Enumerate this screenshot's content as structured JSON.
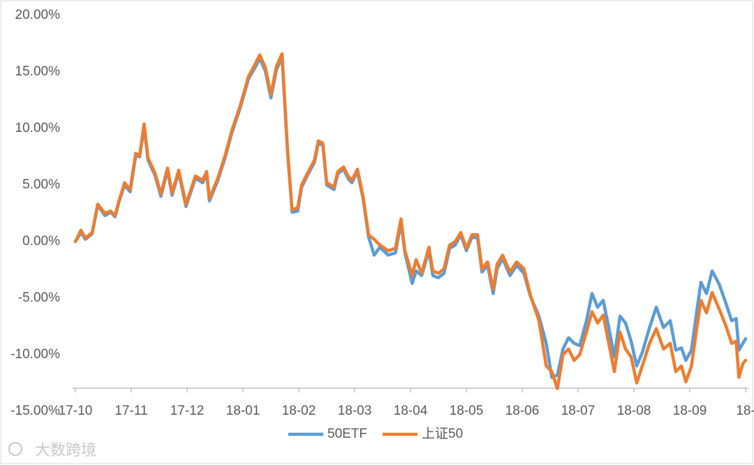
{
  "chart_data": {
    "type": "line",
    "watermark": "大数跨境",
    "xlim": [
      0,
      12
    ],
    "xticks": [
      {
        "value": 0,
        "label": "17-10"
      },
      {
        "value": 1,
        "label": "17-11"
      },
      {
        "value": 2,
        "label": "17-12"
      },
      {
        "value": 3,
        "label": "18-01"
      },
      {
        "value": 4,
        "label": "18-02"
      },
      {
        "value": 5,
        "label": "18-03"
      },
      {
        "value": 6,
        "label": "18-04"
      },
      {
        "value": 7,
        "label": "18-05"
      },
      {
        "value": 8,
        "label": "18-06"
      },
      {
        "value": 9,
        "label": "18-07"
      },
      {
        "value": 10,
        "label": "18-08"
      },
      {
        "value": 11,
        "label": "18-09"
      },
      {
        "value": 12,
        "label": "18-"
      }
    ],
    "ylim": [
      -15,
      20
    ],
    "yticks": [
      {
        "value": -15,
        "label": "-15.00%"
      },
      {
        "value": -10,
        "label": "-10.00%"
      },
      {
        "value": -5,
        "label": "-5.00%"
      },
      {
        "value": 0,
        "label": "0.00%"
      },
      {
        "value": 5,
        "label": "5.00%"
      },
      {
        "value": 10,
        "label": "10.00%"
      },
      {
        "value": 15,
        "label": "15.00%"
      },
      {
        "value": 20,
        "label": "20.00%"
      }
    ],
    "legend": "bottom",
    "x": [
      0,
      0.1,
      0.18,
      0.3,
      0.4,
      0.53,
      0.63,
      0.71,
      0.78,
      0.88,
      0.98,
      1.08,
      1.15,
      1.23,
      1.3,
      1.43,
      1.53,
      1.65,
      1.73,
      1.85,
      1.98,
      2.15,
      2.28,
      2.35,
      2.4,
      2.55,
      2.68,
      2.8,
      2.95,
      3.1,
      3.23,
      3.3,
      3.4,
      3.5,
      3.6,
      3.7,
      3.8,
      3.88,
      3.98,
      4.05,
      4.15,
      4.28,
      4.35,
      4.43,
      4.5,
      4.63,
      4.7,
      4.8,
      4.88,
      4.95,
      5.05,
      5.15,
      5.25,
      5.35,
      5.45,
      5.6,
      5.73,
      5.83,
      5.9,
      6.03,
      6.1,
      6.2,
      6.33,
      6.4,
      6.5,
      6.6,
      6.7,
      6.8,
      6.9,
      7.0,
      7.1,
      7.2,
      7.28,
      7.38,
      7.48,
      7.55,
      7.65,
      7.78,
      7.9,
      8.03,
      8.15,
      8.3,
      8.43,
      8.53,
      8.63,
      8.73,
      8.83,
      8.93,
      9.03,
      9.15,
      9.25,
      9.35,
      9.45,
      9.55,
      9.65,
      9.75,
      9.85,
      9.95,
      10.05,
      10.15,
      10.28,
      10.4,
      10.53,
      10.65,
      10.75,
      10.85,
      10.93,
      11.03,
      11.13,
      11.2,
      11.3,
      11.4,
      11.53,
      11.65,
      11.75,
      11.83,
      11.88,
      11.95,
      12.0
    ],
    "series": [
      {
        "name": "50ETF",
        "color": "#5b9bd5",
        "values": [
          0,
          0.8,
          0.2,
          0.7,
          3.2,
          2.3,
          2.6,
          2.2,
          3.5,
          5.0,
          4.4,
          7.6,
          7.5,
          10.1,
          7.2,
          5.8,
          4.0,
          6.3,
          4.1,
          6.1,
          3.1,
          5.6,
          5.2,
          6.0,
          3.6,
          5.4,
          7.4,
          9.6,
          11.8,
          14.4,
          15.5,
          16.2,
          15.1,
          12.7,
          15.2,
          16.3,
          7.8,
          2.6,
          2.7,
          4.8,
          5.8,
          7.0,
          8.7,
          8.5,
          5.0,
          4.6,
          6.0,
          6.4,
          5.6,
          5.2,
          6.2,
          3.8,
          0.4,
          -1.2,
          -0.5,
          -1.2,
          -1.0,
          1.7,
          -1.0,
          -3.7,
          -2.6,
          -3.0,
          -0.8,
          -3.0,
          -3.2,
          -2.8,
          -0.6,
          -0.3,
          0.6,
          -0.8,
          0.4,
          0.3,
          -2.7,
          -2.1,
          -4.6,
          -2.4,
          -1.5,
          -3.0,
          -2.1,
          -2.8,
          -4.9,
          -6.6,
          -9.0,
          -12.0,
          -11.8,
          -9.5,
          -8.5,
          -9.0,
          -9.2,
          -7.0,
          -4.6,
          -5.8,
          -5.2,
          -7.6,
          -10.2,
          -6.6,
          -7.2,
          -8.8,
          -11.0,
          -9.8,
          -7.6,
          -5.8,
          -7.6,
          -7.0,
          -9.6,
          -9.4,
          -10.5,
          -9.6,
          -6.0,
          -3.6,
          -4.6,
          -2.6,
          -3.8,
          -5.5,
          -7.0,
          -6.8,
          -9.6,
          -9.0,
          -8.6
        ]
      },
      {
        "name": "上证50",
        "color": "#ed7d31",
        "values": [
          0,
          1.0,
          0.3,
          0.8,
          3.3,
          2.5,
          2.7,
          2.3,
          3.6,
          5.2,
          4.6,
          7.8,
          7.6,
          10.4,
          7.4,
          6.0,
          4.2,
          6.5,
          4.3,
          6.3,
          3.3,
          5.8,
          5.4,
          6.2,
          3.8,
          5.6,
          7.6,
          9.8,
          12.0,
          14.6,
          15.8,
          16.5,
          15.4,
          13.0,
          15.5,
          16.6,
          8.0,
          2.8,
          3.0,
          5.0,
          6.0,
          7.2,
          8.9,
          8.7,
          5.2,
          4.8,
          6.2,
          6.6,
          5.8,
          5.4,
          6.4,
          4.0,
          0.6,
          0.2,
          -0.3,
          -0.8,
          -0.6,
          2.0,
          -0.8,
          -3.0,
          -1.6,
          -2.8,
          -0.5,
          -2.6,
          -2.8,
          -2.4,
          -0.3,
          0,
          0.8,
          -0.6,
          0.6,
          0.6,
          -2.4,
          -1.8,
          -4.2,
          -2.0,
          -1.2,
          -2.7,
          -1.8,
          -2.4,
          -4.8,
          -7.0,
          -11.0,
          -11.5,
          -13.0,
          -10.0,
          -9.5,
          -10.5,
          -10.0,
          -8.0,
          -6.2,
          -7.2,
          -6.5,
          -9.0,
          -11.5,
          -8.0,
          -9.5,
          -10.2,
          -12.5,
          -11.0,
          -9.0,
          -7.7,
          -9.5,
          -9.0,
          -11.5,
          -11.0,
          -12.4,
          -11.0,
          -7.5,
          -5.2,
          -6.3,
          -4.5,
          -6.0,
          -7.5,
          -9.0,
          -8.8,
          -12.0,
          -10.8,
          -10.5
        ]
      }
    ]
  }
}
